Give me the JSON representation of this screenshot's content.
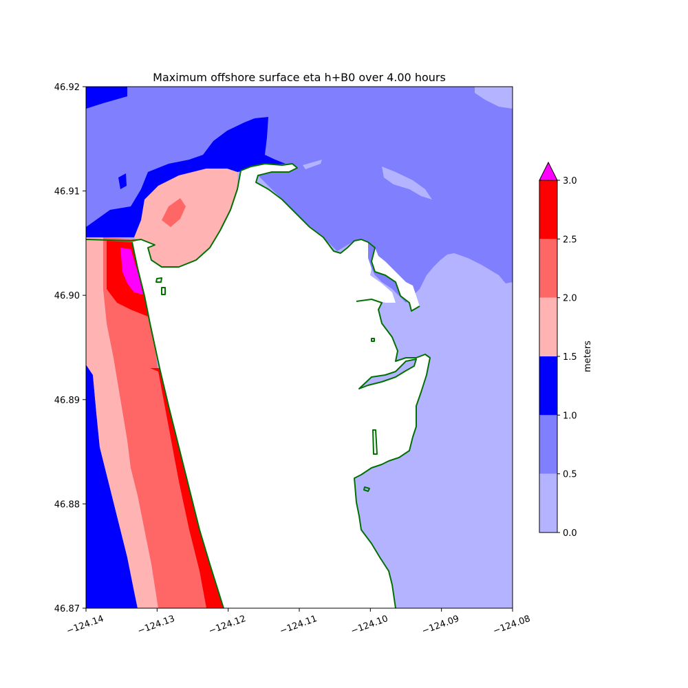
{
  "chart_data": {
    "type": "heatmap",
    "title": "Maximum offshore surface eta h+B0 over 4.00 hours",
    "xlabel": "",
    "ylabel": "",
    "xlim": [
      -124.14,
      -124.08
    ],
    "ylim": [
      46.87,
      46.92
    ],
    "x_ticks": [
      "−124.14",
      "−124.13",
      "−124.12",
      "−124.11",
      "−124.10",
      "−124.09",
      "−124.08"
    ],
    "x_tick_values": [
      -124.14,
      -124.13,
      -124.12,
      -124.11,
      -124.1,
      -124.09,
      -124.08
    ],
    "y_ticks": [
      "46.87",
      "46.88",
      "46.89",
      "46.90",
      "46.91",
      "46.92"
    ],
    "y_tick_values": [
      46.87,
      46.88,
      46.89,
      46.9,
      46.91,
      46.92
    ],
    "colorbar": {
      "label": "meters",
      "ticks": [
        "0.0",
        "0.5",
        "1.0",
        "1.5",
        "2.0",
        "2.5",
        "3.0"
      ],
      "levels": [
        0.0,
        0.5,
        1.0,
        1.5,
        2.0,
        2.5,
        3.0
      ],
      "colors": [
        "#b3b3ff",
        "#8080ff",
        "#0000ff",
        "#ffb3b3",
        "#ff6666",
        "#ff0000"
      ],
      "extend_max_color": "#ff00ff"
    },
    "land_color": "#ffffff",
    "coastline_color": "#007000"
  }
}
